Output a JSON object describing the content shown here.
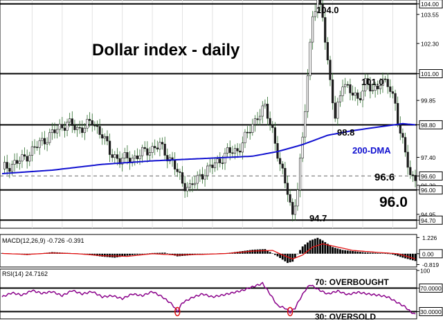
{
  "chart_data": [
    {
      "type": "candlestick",
      "title": "Dollar index - daily",
      "ylim": [
        94.5,
        104.05
      ],
      "axis_ticks": [
        "104.00",
        "103.55",
        "102.30",
        "101.00",
        "99.85",
        "98.80",
        "97.40",
        "96.60",
        "96.20",
        "96.00",
        "94.95",
        "94.70"
      ],
      "horizontal_levels": [
        104.0,
        101.0,
        98.8,
        96.0,
        94.7
      ],
      "dashed_level": 96.6,
      "series": [
        {
          "name": "200-DMA"
        }
      ],
      "annotations": {
        "high": "104.0",
        "resistance": "101.0",
        "dma_level": "98.8",
        "dma_label": "200-DMA",
        "last": "96.6",
        "support": "96.0",
        "low": "94.7"
      },
      "price_path": [
        [
          0,
          96.9
        ],
        [
          8,
          97.3
        ],
        [
          15,
          98.0
        ],
        [
          22,
          98.6
        ],
        [
          26,
          98.9
        ],
        [
          30,
          98.6
        ],
        [
          36,
          98.9
        ],
        [
          40,
          98.4
        ],
        [
          43,
          97.6
        ],
        [
          47,
          97.3
        ],
        [
          53,
          97.4
        ],
        [
          58,
          97.7
        ],
        [
          63,
          97.9
        ],
        [
          68,
          97.2
        ],
        [
          72,
          96.3
        ],
        [
          75,
          96.1
        ],
        [
          80,
          96.7
        ],
        [
          86,
          97.2
        ],
        [
          90,
          97.6
        ],
        [
          94,
          97.7
        ],
        [
          98,
          98.4
        ],
        [
          102,
          99.2
        ],
        [
          105,
          99.5
        ],
        [
          108,
          98.6
        ],
        [
          111,
          97.0
        ],
        [
          114,
          96.0
        ],
        [
          116,
          94.9
        ],
        [
          118,
          96.0
        ],
        [
          120,
          98.2
        ],
        [
          122,
          101.0
        ],
        [
          124,
          103.5
        ],
        [
          126,
          104.0
        ],
        [
          128,
          103.6
        ],
        [
          130,
          101.5
        ],
        [
          133,
          99.0
        ],
        [
          136,
          100.7
        ],
        [
          139,
          100.2
        ],
        [
          142,
          99.9
        ],
        [
          145,
          100.6
        ],
        [
          148,
          100.2
        ],
        [
          151,
          100.7
        ],
        [
          154,
          100.5
        ],
        [
          157,
          99.8
        ],
        [
          159,
          98.4
        ],
        [
          161,
          97.6
        ],
        [
          163,
          96.6
        ]
      ],
      "dma_path": [
        [
          0,
          96.7
        ],
        [
          20,
          96.85
        ],
        [
          40,
          97.1
        ],
        [
          60,
          97.25
        ],
        [
          80,
          97.35
        ],
        [
          100,
          97.45
        ],
        [
          110,
          97.65
        ],
        [
          120,
          97.95
        ],
        [
          130,
          98.35
        ],
        [
          140,
          98.55
        ],
        [
          150,
          98.7
        ],
        [
          160,
          98.85
        ],
        [
          165,
          98.8
        ]
      ]
    },
    {
      "type": "histogram",
      "title": "MACD(12,26,9) -0.726 -0.391",
      "axis_ticks": [
        "1.226",
        "0.00",
        "-0.819"
      ],
      "ylim": [
        -0.9,
        1.35
      ],
      "macd_histogram": [
        [
          0,
          0.05
        ],
        [
          10,
          -0.1
        ],
        [
          20,
          0.12
        ],
        [
          30,
          0.02
        ],
        [
          40,
          -0.22
        ],
        [
          45,
          -0.3
        ],
        [
          50,
          -0.15
        ],
        [
          60,
          0.05
        ],
        [
          65,
          0.08
        ],
        [
          70,
          -0.2
        ],
        [
          75,
          -0.12
        ],
        [
          80,
          -0.02
        ],
        [
          90,
          0.05
        ],
        [
          100,
          0.3
        ],
        [
          105,
          0.35
        ],
        [
          110,
          -0.2
        ],
        [
          114,
          -0.7
        ],
        [
          116,
          -0.6
        ],
        [
          118,
          0.0
        ],
        [
          120,
          0.55
        ],
        [
          123,
          1.0
        ],
        [
          126,
          1.2
        ],
        [
          128,
          1.0
        ],
        [
          132,
          0.5
        ],
        [
          136,
          0.28
        ],
        [
          140,
          0.2
        ],
        [
          145,
          0.1
        ],
        [
          150,
          0.05
        ],
        [
          155,
          0.0
        ],
        [
          160,
          -0.3
        ],
        [
          165,
          -0.55
        ]
      ],
      "signal_path": [
        [
          0,
          0.02
        ],
        [
          10,
          -0.05
        ],
        [
          20,
          0.05
        ],
        [
          30,
          0.0
        ],
        [
          40,
          -0.15
        ],
        [
          50,
          -0.2
        ],
        [
          60,
          0.0
        ],
        [
          70,
          -0.1
        ],
        [
          80,
          -0.05
        ],
        [
          90,
          0.02
        ],
        [
          100,
          0.2
        ],
        [
          108,
          0.25
        ],
        [
          112,
          -0.1
        ],
        [
          116,
          -0.4
        ],
        [
          120,
          -0.1
        ],
        [
          124,
          0.5
        ],
        [
          128,
          0.75
        ],
        [
          134,
          0.5
        ],
        [
          140,
          0.25
        ],
        [
          150,
          0.1
        ],
        [
          158,
          0.0
        ],
        [
          165,
          -0.39
        ]
      ]
    },
    {
      "type": "line",
      "title": "RSI(14) 24.7162",
      "ylim": [
        20,
        100
      ],
      "axis_ticks": [
        "100",
        "70.0000",
        "30.0000"
      ],
      "levels": [
        70,
        30
      ],
      "level_labels": [
        "70: OVERBOUGHT",
        "30: OVERSOLD"
      ],
      "rsi_path": [
        [
          0,
          55
        ],
        [
          4,
          62
        ],
        [
          8,
          58
        ],
        [
          12,
          66
        ],
        [
          16,
          61
        ],
        [
          20,
          64
        ],
        [
          24,
          57
        ],
        [
          28,
          66
        ],
        [
          32,
          60
        ],
        [
          36,
          64
        ],
        [
          40,
          55
        ],
        [
          44,
          57
        ],
        [
          48,
          52
        ],
        [
          52,
          60
        ],
        [
          56,
          57
        ],
        [
          60,
          64
        ],
        [
          64,
          55
        ],
        [
          68,
          42
        ],
        [
          70,
          30
        ],
        [
          72,
          45
        ],
        [
          76,
          54
        ],
        [
          80,
          60
        ],
        [
          84,
          55
        ],
        [
          88,
          58
        ],
        [
          92,
          62
        ],
        [
          96,
          66
        ],
        [
          100,
          72
        ],
        [
          104,
          78
        ],
        [
          107,
          60
        ],
        [
          110,
          40
        ],
        [
          113,
          36
        ],
        [
          115,
          29
        ],
        [
          117,
          36
        ],
        [
          119,
          52
        ],
        [
          121,
          66
        ],
        [
          123,
          76
        ],
        [
          126,
          68
        ],
        [
          130,
          60
        ],
        [
          134,
          65
        ],
        [
          138,
          59
        ],
        [
          142,
          63
        ],
        [
          146,
          60
        ],
        [
          150,
          58
        ],
        [
          154,
          55
        ],
        [
          158,
          45
        ],
        [
          161,
          38
        ],
        [
          163,
          30
        ],
        [
          165,
          25
        ]
      ],
      "oversold_markers": [
        70,
        115
      ]
    }
  ]
}
